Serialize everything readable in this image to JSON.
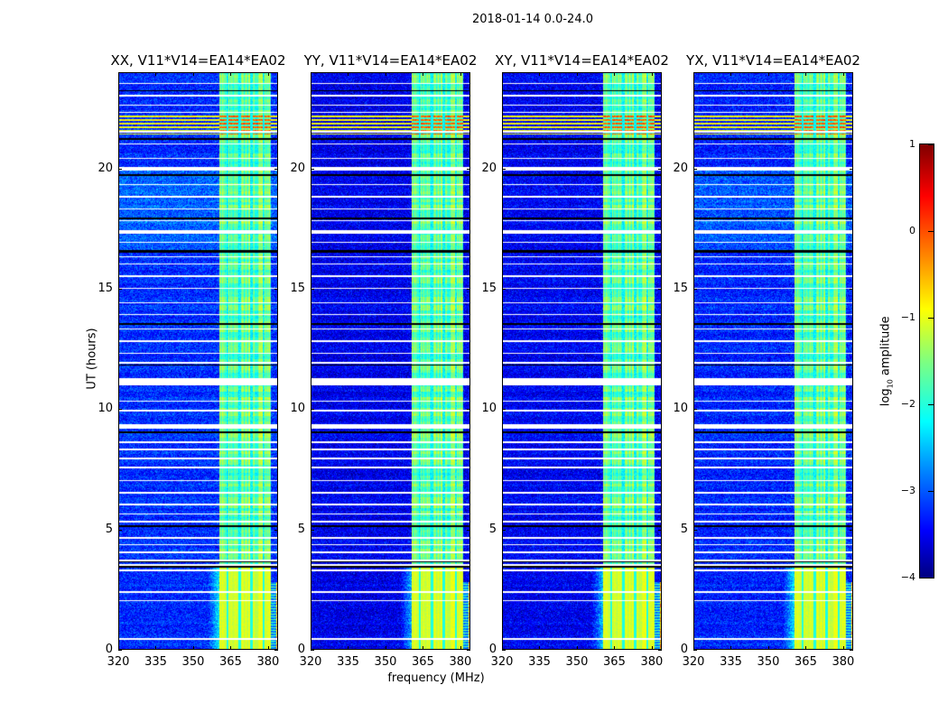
{
  "suptitle": "2018-01-14 0.0-24.0",
  "chart_data": {
    "type": "heatmap",
    "title": "2018-01-14 0.0-24.0",
    "xlabel": "frequency (MHz)",
    "ylabel": "UT (hours)",
    "xlim": [
      320,
      384
    ],
    "ylim": [
      0,
      24
    ],
    "xticks": [
      "320",
      "335",
      "350",
      "365",
      "380"
    ],
    "yticks": [
      "0",
      "5",
      "10",
      "15",
      "20"
    ],
    "panels": [
      {
        "title": "XX, V11*V14=EA14*EA02",
        "level_offset": 0.15
      },
      {
        "title": "YY, V11*V14=EA14*EA02",
        "level_offset": -0.15
      },
      {
        "title": "XY, V11*V14=EA14*EA02",
        "level_offset": -0.1
      },
      {
        "title": "YX, V11*V14=EA14*EA02",
        "level_offset": 0.1
      }
    ],
    "colorbar": {
      "label_prefix": "log",
      "label_sub": "10",
      "label_suffix": " amplitude",
      "range": [
        -4,
        1
      ],
      "ticks": [
        "1",
        "0",
        "−1",
        "−2",
        "−3",
        "−4"
      ],
      "colormap": "jet"
    },
    "rfi_band_mhz": [
      360.5,
      381
    ],
    "flagged_hours": [
      [
        0.42,
        0.48
      ],
      [
        2.02,
        2.08
      ],
      [
        2.38,
        2.44
      ],
      [
        3.28,
        3.34
      ],
      [
        3.5,
        3.58
      ],
      [
        3.68,
        3.76
      ],
      [
        4.02,
        4.08
      ],
      [
        4.34,
        4.4
      ],
      [
        4.62,
        4.68
      ],
      [
        5.3,
        5.36
      ],
      [
        5.62,
        5.68
      ],
      [
        6.0,
        6.06
      ],
      [
        6.5,
        6.56
      ],
      [
        7.0,
        7.06
      ],
      [
        7.55,
        7.6
      ],
      [
        7.9,
        8.0
      ],
      [
        8.3,
        8.36
      ],
      [
        8.6,
        8.66
      ],
      [
        9.18,
        9.36
      ],
      [
        9.9,
        9.96
      ],
      [
        10.3,
        10.36
      ],
      [
        11.0,
        11.3
      ],
      [
        11.9,
        11.95
      ],
      [
        12.3,
        12.35
      ],
      [
        12.8,
        12.85
      ],
      [
        13.3,
        13.35
      ],
      [
        13.9,
        13.95
      ],
      [
        14.4,
        14.45
      ],
      [
        15.0,
        15.05
      ],
      [
        15.5,
        15.55
      ],
      [
        16.0,
        16.05
      ],
      [
        16.3,
        16.35
      ],
      [
        16.9,
        16.95
      ],
      [
        17.3,
        17.45
      ],
      [
        17.8,
        17.85
      ],
      [
        18.3,
        18.35
      ],
      [
        18.8,
        18.85
      ],
      [
        19.3,
        19.35
      ],
      [
        19.9,
        20.05
      ],
      [
        20.4,
        20.45
      ],
      [
        21.0,
        21.05
      ],
      [
        21.5,
        21.55
      ],
      [
        22.3,
        22.35
      ],
      [
        22.6,
        22.65
      ],
      [
        23.0,
        23.05
      ],
      [
        23.5,
        23.55
      ]
    ],
    "zero_hours": [
      [
        3.42,
        3.48
      ],
      [
        3.62,
        3.66
      ],
      [
        5.1,
        5.16
      ],
      [
        9.0,
        9.08
      ],
      [
        11.8,
        11.86
      ],
      [
        13.5,
        13.56
      ],
      [
        16.5,
        16.6
      ],
      [
        17.9,
        17.96
      ],
      [
        19.7,
        19.76
      ],
      [
        21.2,
        21.26
      ],
      [
        23.2,
        23.26
      ]
    ]
  }
}
